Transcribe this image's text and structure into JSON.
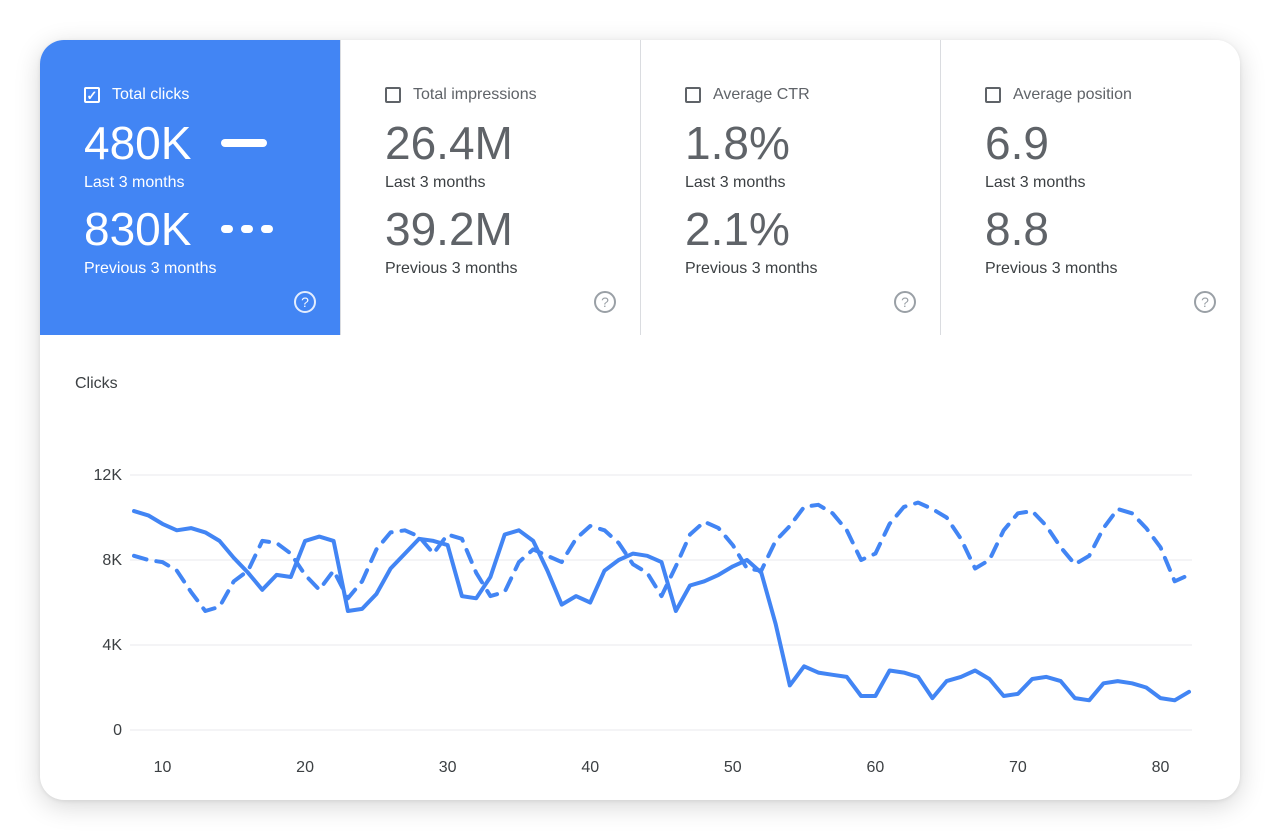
{
  "colors": {
    "accent": "#4285f4",
    "metric_text": "#5f6368",
    "caption": "#3c4043",
    "grid": "#e8eaed",
    "divider": "#dadce0"
  },
  "icons": {
    "check_glyph": "✓",
    "help_glyph": "?"
  },
  "cards": [
    {
      "label": "Total clicks",
      "checked": true,
      "selected": true,
      "value_current": "480K",
      "caption_current": "Last 3 months",
      "value_previous": "830K",
      "caption_previous": "Previous 3 months"
    },
    {
      "label": "Total impressions",
      "checked": false,
      "selected": false,
      "value_current": "26.4M",
      "caption_current": "Last 3 months",
      "value_previous": "39.2M",
      "caption_previous": "Previous 3 months"
    },
    {
      "label": "Average CTR",
      "checked": false,
      "selected": false,
      "value_current": "1.8%",
      "caption_current": "Last 3 months",
      "value_previous": "2.1%",
      "caption_previous": "Previous 3 months"
    },
    {
      "label": "Average position",
      "checked": false,
      "selected": false,
      "value_current": "6.9",
      "caption_current": "Last 3 months",
      "value_previous": "8.8",
      "caption_previous": "Previous 3 months"
    }
  ],
  "chart_data": {
    "type": "line",
    "title": "Clicks",
    "unit": "K",
    "xlim": [
      8,
      82
    ],
    "ylim": [
      0,
      12
    ],
    "grid": true,
    "legend": "none",
    "xticks": [
      10,
      20,
      30,
      40,
      50,
      60,
      70,
      80
    ],
    "yticks": [
      {
        "value": 0,
        "label": "0"
      },
      {
        "value": 4,
        "label": "4K"
      },
      {
        "value": 8,
        "label": "8K"
      },
      {
        "value": 12,
        "label": "12K"
      }
    ],
    "x": [
      8,
      9,
      10,
      11,
      12,
      13,
      14,
      15,
      16,
      17,
      18,
      19,
      20,
      21,
      22,
      23,
      24,
      25,
      26,
      27,
      28,
      29,
      30,
      31,
      32,
      33,
      34,
      35,
      36,
      37,
      38,
      39,
      40,
      41,
      42,
      43,
      44,
      45,
      46,
      47,
      48,
      49,
      50,
      51,
      52,
      53,
      54,
      55,
      56,
      57,
      58,
      59,
      60,
      61,
      62,
      63,
      64,
      65,
      66,
      67,
      68,
      69,
      70,
      71,
      72,
      73,
      74,
      75,
      76,
      77,
      78,
      79,
      80,
      81,
      82
    ],
    "series": [
      {
        "name": "Last 3 months",
        "style": "solid",
        "values": [
          10.3,
          10.1,
          9.7,
          9.4,
          9.5,
          9.3,
          8.9,
          8.1,
          7.4,
          6.6,
          7.3,
          7.2,
          8.9,
          9.1,
          8.9,
          5.6,
          5.7,
          6.4,
          7.6,
          8.3,
          9.0,
          8.9,
          8.7,
          6.3,
          6.2,
          7.2,
          9.2,
          9.4,
          8.9,
          7.5,
          5.9,
          6.3,
          6.0,
          7.5,
          8.0,
          8.3,
          8.2,
          7.9,
          5.6,
          6.8,
          7.0,
          7.3,
          7.7,
          8.0,
          7.4,
          5.0,
          2.1,
          3.0,
          2.7,
          2.6,
          2.5,
          1.6,
          1.6,
          2.8,
          2.7,
          2.5,
          1.5,
          2.3,
          2.5,
          2.8,
          2.4,
          1.6,
          1.7,
          2.4,
          2.5,
          2.3,
          1.5,
          1.4,
          2.2,
          2.3,
          2.2,
          2.0,
          1.5,
          1.4,
          1.8
        ]
      },
      {
        "name": "Previous 3 months",
        "style": "dashed",
        "values": [
          8.2,
          8.0,
          7.9,
          7.5,
          6.5,
          5.6,
          5.8,
          7.0,
          7.5,
          8.9,
          8.8,
          8.3,
          7.3,
          6.6,
          7.5,
          6.2,
          7.0,
          8.5,
          9.3,
          9.4,
          9.1,
          8.3,
          9.2,
          9.0,
          7.4,
          6.3,
          6.5,
          7.9,
          8.5,
          8.2,
          7.9,
          9.0,
          9.6,
          9.4,
          8.8,
          7.8,
          7.4,
          6.3,
          7.7,
          9.2,
          9.8,
          9.5,
          8.7,
          7.6,
          7.5,
          8.9,
          9.6,
          10.5,
          10.6,
          10.2,
          9.4,
          8.0,
          8.3,
          9.7,
          10.5,
          10.7,
          10.4,
          10.0,
          9.0,
          7.6,
          8.0,
          9.4,
          10.2,
          10.3,
          9.6,
          8.6,
          7.8,
          8.2,
          9.5,
          10.4,
          10.2,
          9.5,
          8.6,
          7.0,
          7.3
        ]
      }
    ]
  }
}
